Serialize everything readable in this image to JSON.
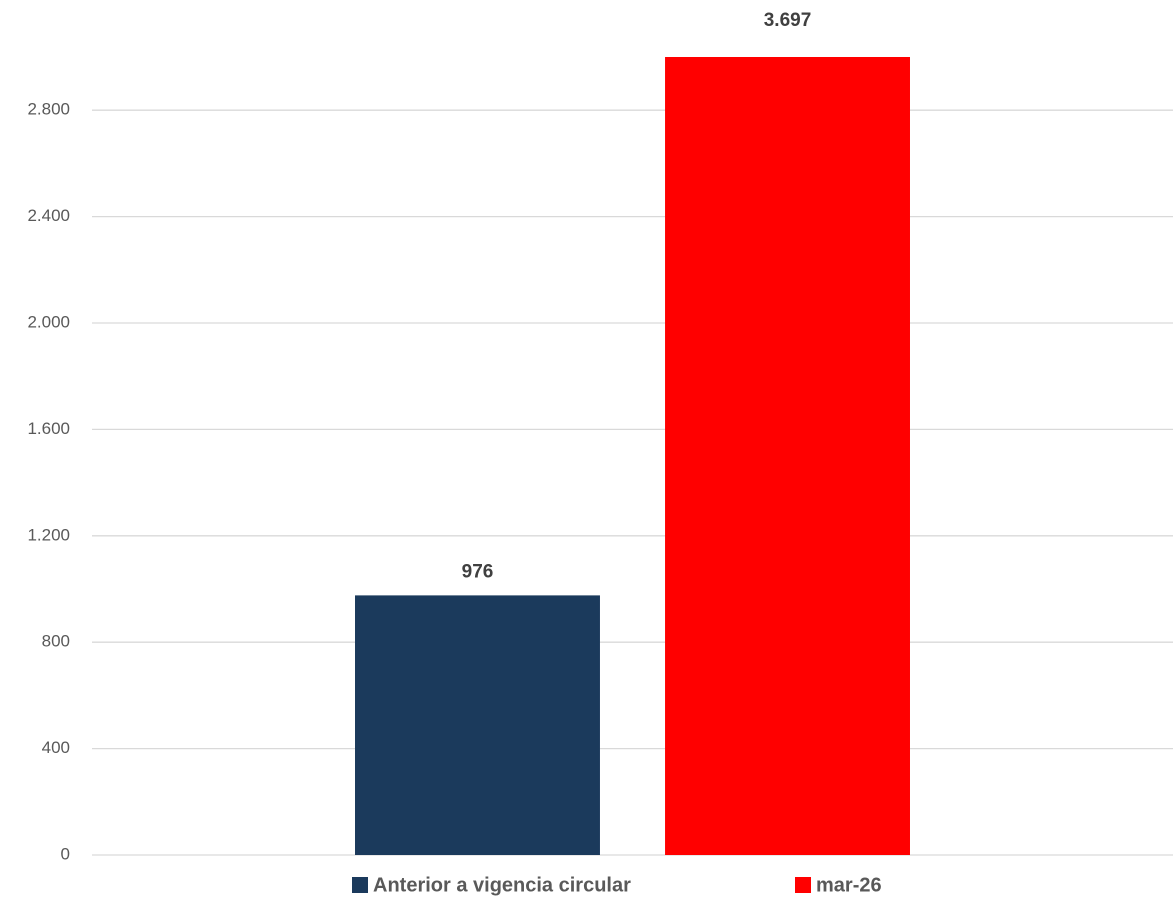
{
  "chart_data": {
    "type": "bar",
    "categories": [
      null
    ],
    "series": [
      {
        "name": "Anterior a vigencia circular",
        "color": "#1b3a5c",
        "values": [
          976
        ]
      },
      {
        "name": "mar-26",
        "color": "#ff0000",
        "values": [
          3697
        ],
        "value_labels": [
          "3.697"
        ]
      }
    ],
    "ylim": [
      0,
      3000
    ],
    "yticks": [
      0,
      400,
      800,
      {
        "value": 1200,
        "label": "1.200"
      },
      {
        "value": 1600,
        "label": "1.600"
      },
      {
        "value": 2000,
        "label": "2.000"
      },
      {
        "value": 2400,
        "label": "2.400"
      },
      {
        "value": 2800,
        "label": "2.800"
      }
    ],
    "grid": true,
    "legend": "bottom"
  }
}
